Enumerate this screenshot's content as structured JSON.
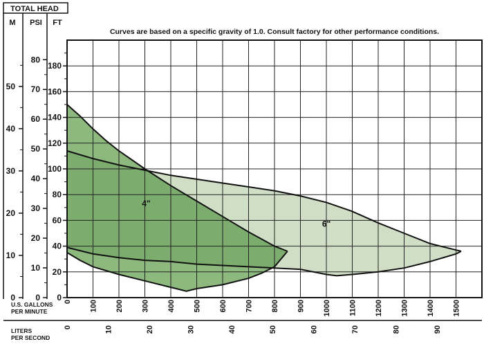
{
  "header": {
    "title": "TOTAL HEAD",
    "col_m": "M",
    "col_psi": "PSI",
    "col_ft": "FT"
  },
  "note": "Curves are based on a specific gravity of 1.0. Consult factory for other performance conditions.",
  "colors": {
    "region_6in": "#cfdec5",
    "region_4in": "#8db87e",
    "overlap_fill": "#7cac6e",
    "stroke": "#111111",
    "grid": "#222222"
  },
  "chart_data": {
    "type": "area",
    "title": "Curves are based on a specific gravity of 1.0. Consult factory for other performance conditions.",
    "xlabel": "U.S. GALLONS PER MINUTE",
    "ylabel": "TOTAL HEAD",
    "xlim": [
      0,
      1600
    ],
    "ylim": [
      0,
      200
    ],
    "x_ticks": [
      0,
      100,
      200,
      300,
      400,
      500,
      600,
      700,
      800,
      900,
      1000,
      1100,
      1200,
      1300,
      1400,
      1500
    ],
    "y_ticks_ft": [
      0,
      20,
      40,
      60,
      80,
      100,
      120,
      140,
      160,
      180
    ],
    "y_ticks_m": [
      0,
      10,
      20,
      30,
      40,
      50
    ],
    "y_ticks_psi": [
      0,
      10,
      20,
      30,
      40,
      50,
      60,
      70,
      80
    ],
    "secondary_x": {
      "label": "LITERS PER SECOND",
      "ticks": [
        0,
        10,
        20,
        30,
        40,
        50,
        60,
        70,
        80,
        90
      ]
    },
    "grid": true,
    "series": [
      {
        "name": "6\"",
        "label_at": [
          1000,
          55
        ],
        "upper": [
          [
            0,
            114
          ],
          [
            100,
            108
          ],
          [
            200,
            103
          ],
          [
            300,
            99
          ],
          [
            400,
            95
          ],
          [
            500,
            92
          ],
          [
            600,
            89
          ],
          [
            700,
            86
          ],
          [
            800,
            83
          ],
          [
            900,
            79
          ],
          [
            1000,
            74
          ],
          [
            1100,
            67
          ],
          [
            1200,
            58
          ],
          [
            1300,
            50
          ],
          [
            1400,
            42
          ],
          [
            1500,
            37
          ],
          [
            1520,
            36
          ]
        ],
        "lower": [
          [
            0,
            39
          ],
          [
            100,
            34
          ],
          [
            200,
            31
          ],
          [
            300,
            29
          ],
          [
            400,
            28
          ],
          [
            500,
            26
          ],
          [
            600,
            25
          ],
          [
            700,
            24
          ],
          [
            800,
            23
          ],
          [
            900,
            22
          ],
          [
            1000,
            18
          ],
          [
            1040,
            17
          ],
          [
            1100,
            18
          ],
          [
            1200,
            20
          ],
          [
            1300,
            23
          ],
          [
            1400,
            28
          ],
          [
            1500,
            34
          ],
          [
            1520,
            36
          ]
        ]
      },
      {
        "name": "4\"",
        "label_at": [
          305,
          71
        ],
        "upper": [
          [
            0,
            150
          ],
          [
            50,
            141
          ],
          [
            100,
            131
          ],
          [
            150,
            122
          ],
          [
            200,
            114
          ],
          [
            300,
            100
          ],
          [
            400,
            87
          ],
          [
            500,
            75
          ],
          [
            600,
            63
          ],
          [
            700,
            51
          ],
          [
            800,
            40
          ],
          [
            850,
            36
          ]
        ],
        "lower": [
          [
            0,
            35
          ],
          [
            50,
            29
          ],
          [
            100,
            24
          ],
          [
            200,
            18
          ],
          [
            300,
            13
          ],
          [
            400,
            8
          ],
          [
            460,
            5
          ],
          [
            500,
            7
          ],
          [
            600,
            10
          ],
          [
            700,
            15
          ],
          [
            750,
            19
          ],
          [
            800,
            24
          ],
          [
            850,
            36
          ]
        ]
      }
    ]
  }
}
